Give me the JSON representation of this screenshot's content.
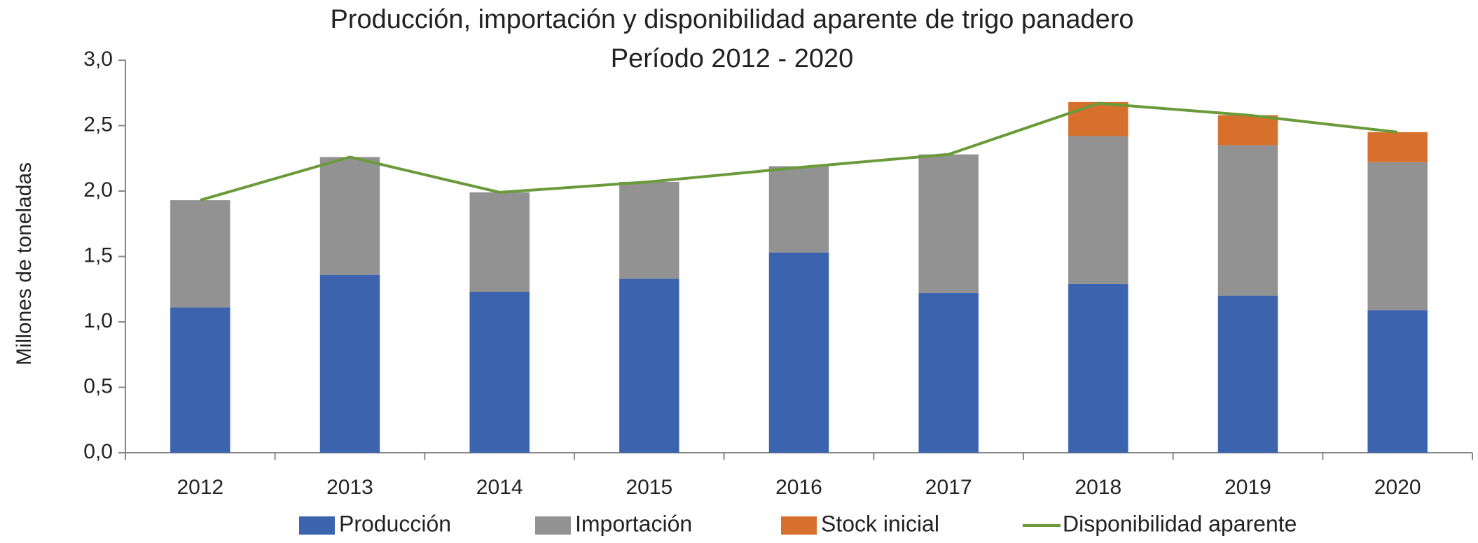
{
  "chart_data": {
    "type": "stacked_bar_line",
    "title": "Producción, importación y disponibilidad aparente de trigo panadero",
    "subtitle": "Período 2012 - 2020",
    "y_label": "Millones de toneladas",
    "categories": [
      "2012",
      "2013",
      "2014",
      "2015",
      "2016",
      "2017",
      "2018",
      "2019",
      "2020"
    ],
    "series": [
      {
        "name": "Producción",
        "color": "#3c64ae",
        "values": [
          1.11,
          1.36,
          1.23,
          1.33,
          1.53,
          1.22,
          1.29,
          1.2,
          1.09
        ]
      },
      {
        "name": "Importación",
        "color": "#929292",
        "values": [
          0.82,
          0.9,
          0.76,
          0.74,
          0.66,
          1.06,
          1.13,
          1.15,
          1.13
        ]
      },
      {
        "name": "Stock inicial",
        "color": "#d6702c",
        "values": [
          0,
          0,
          0,
          0,
          0,
          0,
          0.26,
          0.23,
          0.23
        ]
      },
      {
        "name": "Disponibilidad aparente",
        "color": "#6a9a3a",
        "kind": "line",
        "values": [
          1.93,
          2.26,
          1.99,
          2.07,
          2.18,
          2.28,
          2.67,
          2.58,
          2.45
        ]
      }
    ],
    "ylim": [
      0,
      3
    ],
    "yticks": [
      {
        "value": 0,
        "label": "0,0"
      },
      {
        "value": 0.5,
        "label": "0,5"
      },
      {
        "value": 1,
        "label": "1,0"
      },
      {
        "value": 1.5,
        "label": "1,5"
      },
      {
        "value": 2,
        "label": "2,0"
      },
      {
        "value": 2.5,
        "label": "2,5"
      },
      {
        "value": 3,
        "label": "3,0"
      }
    ],
    "legend": "bottom"
  }
}
